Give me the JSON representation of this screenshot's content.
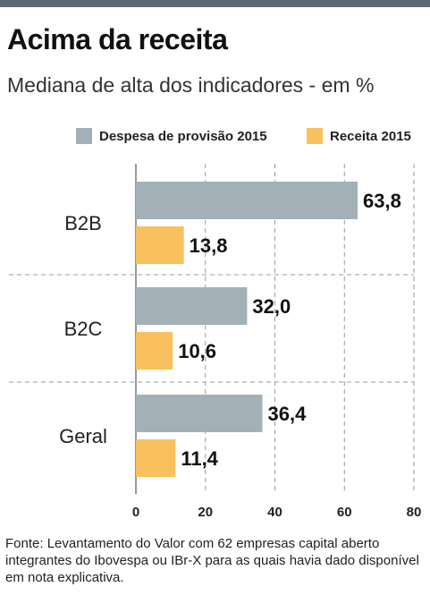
{
  "header": {
    "title": "Acima da receita",
    "subtitle": "Mediana de alta dos indicadores - em %"
  },
  "footnote": "Fonte: Levantamento do Valor com 62 empresas capital aberto integrantes do Ibovespa ou IBr-X para as quais havia dado disponível em nota explicativa.",
  "chart_data": {
    "type": "bar",
    "orientation": "horizontal",
    "categories": [
      "B2B",
      "B2C",
      "Geral"
    ],
    "series": [
      {
        "name": "Despesa de provisão 2015",
        "values": [
          63.8,
          32.0,
          36.4
        ],
        "labels": [
          "63,8",
          "32,0",
          "36,4"
        ],
        "color": "#a3b0b8"
      },
      {
        "name": "Receita 2015",
        "values": [
          13.8,
          10.6,
          11.4
        ],
        "labels": [
          "13,8",
          "10,6",
          "11,4"
        ],
        "color": "#f9c15e"
      }
    ],
    "xlim": [
      0,
      80
    ],
    "xticks": [
      0,
      20,
      40,
      60,
      80
    ],
    "grid": "vertical dashed",
    "legend_position": "top"
  }
}
